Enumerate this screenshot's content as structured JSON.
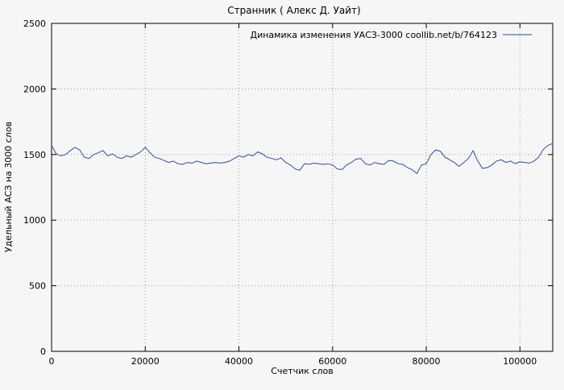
{
  "page": {
    "background": "#f6f6f6"
  },
  "chart_data": {
    "type": "line",
    "title": "Странник ( Алекс Д. Уайт)",
    "legend": "Динамика изменения УАСЗ-3000 coollib.net/b/764123",
    "xlabel": "Счетчик слов",
    "ylabel": "Удельный АСЗ на 3000 слов",
    "xlim": [
      0,
      107000
    ],
    "ylim": [
      0,
      2500
    ],
    "x_ticks": [
      0,
      20000,
      40000,
      60000,
      80000,
      100000
    ],
    "y_ticks": [
      0,
      500,
      1000,
      1500,
      2000,
      2500
    ],
    "grid": true,
    "legend_position": "top-inside-right",
    "line_color": "#2b4da0",
    "grid_color": "#9a9a9a",
    "x": [
      0,
      1000,
      2000,
      3000,
      4000,
      5000,
      6000,
      7000,
      8000,
      9000,
      10000,
      11000,
      12000,
      13000,
      14000,
      15000,
      16000,
      17000,
      18000,
      19000,
      20000,
      21000,
      22000,
      23000,
      24000,
      25000,
      26000,
      27000,
      28000,
      29000,
      30000,
      31000,
      32000,
      33000,
      34000,
      35000,
      36000,
      37000,
      38000,
      39000,
      40000,
      41000,
      42000,
      43000,
      44000,
      45000,
      46000,
      47000,
      48000,
      49000,
      50000,
      51000,
      52000,
      53000,
      54000,
      55000,
      56000,
      57000,
      58000,
      59000,
      60000,
      61000,
      62000,
      63000,
      64000,
      65000,
      66000,
      67000,
      68000,
      69000,
      70000,
      71000,
      72000,
      73000,
      74000,
      75000,
      76000,
      77000,
      78000,
      79000,
      80000,
      81000,
      82000,
      83000,
      84000,
      85000,
      86000,
      87000,
      88000,
      89000,
      90000,
      91000,
      92000,
      93000,
      94000,
      95000,
      96000,
      97000,
      98000,
      99000,
      100000,
      101000,
      102000,
      103000,
      104000,
      105000,
      106000,
      107000
    ],
    "values": [
      1570,
      1505,
      1490,
      1500,
      1530,
      1555,
      1535,
      1480,
      1470,
      1500,
      1515,
      1530,
      1490,
      1505,
      1480,
      1470,
      1490,
      1480,
      1500,
      1520,
      1555,
      1515,
      1480,
      1470,
      1455,
      1440,
      1450,
      1430,
      1425,
      1440,
      1435,
      1450,
      1440,
      1430,
      1435,
      1440,
      1435,
      1440,
      1450,
      1470,
      1490,
      1480,
      1500,
      1490,
      1520,
      1505,
      1480,
      1470,
      1460,
      1475,
      1440,
      1420,
      1390,
      1380,
      1430,
      1425,
      1435,
      1430,
      1425,
      1430,
      1420,
      1390,
      1385,
      1420,
      1440,
      1465,
      1470,
      1430,
      1420,
      1440,
      1430,
      1425,
      1455,
      1450,
      1430,
      1425,
      1400,
      1385,
      1355,
      1420,
      1430,
      1500,
      1535,
      1525,
      1480,
      1460,
      1440,
      1410,
      1440,
      1470,
      1530,
      1450,
      1395,
      1400,
      1420,
      1450,
      1460,
      1440,
      1450,
      1430,
      1445,
      1440,
      1435,
      1450,
      1480,
      1540,
      1570,
      1585
    ]
  }
}
